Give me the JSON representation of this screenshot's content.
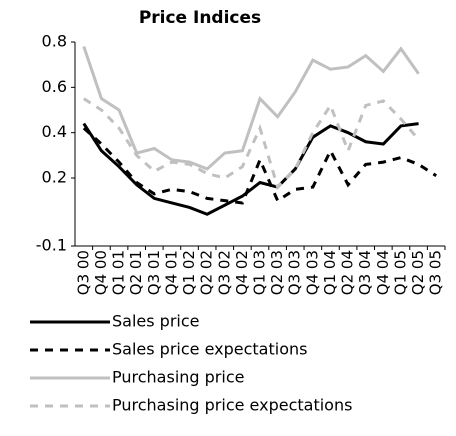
{
  "chart_data": {
    "type": "line",
    "title": "Price Indices",
    "categories": [
      "Q3 00",
      "Q4 00",
      "Q1 01",
      "Q2 01",
      "Q3 01",
      "Q4 01",
      "Q1 02",
      "Q2 02",
      "Q3 02",
      "Q4 02",
      "Q1 03",
      "Q2 03",
      "Q3 03",
      "Q4 03",
      "Q1 04",
      "Q2 04",
      "Q3 04",
      "Q4 04",
      "Q1 05",
      "Q2 05",
      "Q3 05"
    ],
    "series": [
      {
        "name": "Sales price",
        "color": "#000000",
        "dashed": false,
        "values": [
          0.44,
          0.32,
          0.25,
          0.17,
          0.11,
          0.09,
          0.07,
          0.04,
          0.08,
          0.12,
          0.18,
          0.16,
          0.24,
          0.38,
          0.43,
          0.4,
          0.36,
          0.35,
          0.43,
          0.44,
          null
        ]
      },
      {
        "name": "Sales price expectations",
        "color": "#000000",
        "dashed": true,
        "values": [
          0.42,
          0.35,
          0.27,
          0.18,
          0.13,
          0.15,
          0.14,
          0.11,
          0.1,
          0.09,
          0.28,
          0.1,
          0.15,
          0.16,
          0.32,
          0.17,
          0.26,
          0.27,
          0.29,
          0.26,
          0.21
        ]
      },
      {
        "name": "Purchasing price",
        "color": "#c0c0c0",
        "dashed": false,
        "values": [
          0.78,
          0.55,
          0.5,
          0.31,
          0.33,
          0.28,
          0.27,
          0.24,
          0.31,
          0.32,
          0.55,
          0.47,
          0.58,
          0.72,
          0.68,
          0.69,
          0.74,
          0.67,
          0.77,
          0.66,
          null
        ]
      },
      {
        "name": "Purchasing price expectations",
        "color": "#c0c0c0",
        "dashed": true,
        "values": [
          0.55,
          0.5,
          0.42,
          0.3,
          0.23,
          0.27,
          0.26,
          0.22,
          0.2,
          0.25,
          0.42,
          0.16,
          0.24,
          0.4,
          0.52,
          0.32,
          0.52,
          0.54,
          0.46,
          0.37,
          null
        ]
      }
    ],
    "ylim": [
      -0.1,
      0.8
    ],
    "yticks": [
      -0.1,
      0.2,
      0.4,
      0.6,
      0.8
    ],
    "grid": false
  }
}
